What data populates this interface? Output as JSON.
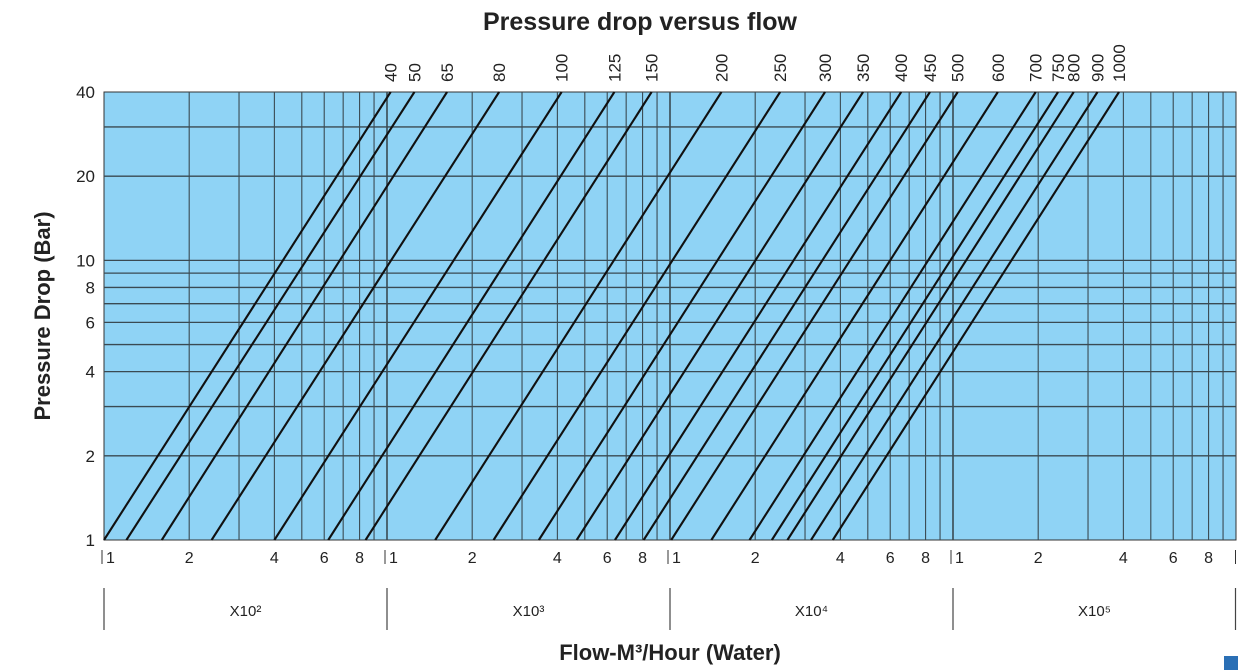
{
  "chart_data": {
    "type": "line",
    "title": "Pressure drop versus flow",
    "xlabel": "Flow-M³/Hour (Water)",
    "ylabel": "Pressure Drop (Bar)",
    "x_scale": "log",
    "y_scale": "log",
    "xlim": [
      1,
      10000
    ],
    "ylim": [
      1,
      40
    ],
    "grid": true,
    "background_color": "#8fd3f5",
    "line_color": "#111111",
    "y_ticks": [
      1,
      2,
      4,
      6,
      8,
      10,
      20,
      40
    ],
    "y_tick_labels": [
      "1",
      "2",
      "4",
      "6",
      "8",
      "10",
      "20",
      "40"
    ],
    "x_decades": [
      {
        "multiplier": "X10²",
        "tick_labels": [
          "1",
          "2",
          "4",
          "6",
          "8"
        ]
      },
      {
        "multiplier": "X10³",
        "tick_labels": [
          "1",
          "2",
          "4",
          "6",
          "8"
        ]
      },
      {
        "multiplier": "X10⁴",
        "tick_labels": [
          "1",
          "2",
          "4",
          "6",
          "8"
        ]
      },
      {
        "multiplier": "X10⁵",
        "tick_labels": [
          "1",
          "2",
          "4",
          "6",
          "8"
        ]
      }
    ],
    "series": [
      {
        "name": "40",
        "x_at_1bar": 1.0,
        "x_at_40bar": 10.3
      },
      {
        "name": "50",
        "x_at_1bar": 1.2,
        "x_at_40bar": 12.5
      },
      {
        "name": "65",
        "x_at_1bar": 1.6,
        "x_at_40bar": 16.3
      },
      {
        "name": "80",
        "x_at_1bar": 2.4,
        "x_at_40bar": 24.9
      },
      {
        "name": "100",
        "x_at_1bar": 4.0,
        "x_at_40bar": 41.4
      },
      {
        "name": "125",
        "x_at_1bar": 6.2,
        "x_at_40bar": 63.6
      },
      {
        "name": "150",
        "x_at_1bar": 8.4,
        "x_at_40bar": 86.1
      },
      {
        "name": "200",
        "x_at_1bar": 14.8,
        "x_at_40bar": 152
      },
      {
        "name": "250",
        "x_at_1bar": 23.8,
        "x_at_40bar": 245
      },
      {
        "name": "300",
        "x_at_1bar": 34.4,
        "x_at_40bar": 353
      },
      {
        "name": "350",
        "x_at_1bar": 46.8,
        "x_at_40bar": 481
      },
      {
        "name": "400",
        "x_at_1bar": 63.9,
        "x_at_40bar": 656
      },
      {
        "name": "450",
        "x_at_1bar": 80.7,
        "x_at_40bar": 829
      },
      {
        "name": "500",
        "x_at_1bar": 101,
        "x_at_40bar": 1039
      },
      {
        "name": "600",
        "x_at_1bar": 140,
        "x_at_40bar": 1440
      },
      {
        "name": "700",
        "x_at_1bar": 191,
        "x_at_40bar": 1960
      },
      {
        "name": "750",
        "x_at_1bar": 229,
        "x_at_40bar": 2350
      },
      {
        "name": "800",
        "x_at_1bar": 260,
        "x_at_40bar": 2670
      },
      {
        "name": "900",
        "x_at_1bar": 315,
        "x_at_40bar": 3240
      },
      {
        "name": "1000",
        "x_at_1bar": 376,
        "x_at_40bar": 3860
      }
    ]
  }
}
